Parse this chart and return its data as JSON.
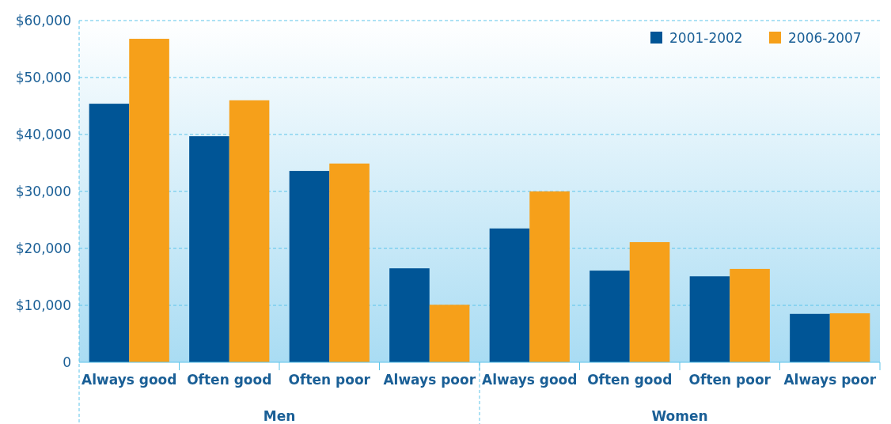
{
  "chart_data": {
    "type": "bar",
    "categories": [
      "Always good",
      "Often good",
      "Often poor",
      "Always poor",
      "Always good",
      "Often good",
      "Often poor",
      "Always poor"
    ],
    "series": [
      {
        "name": "2001-2002",
        "color": "#005596",
        "values": [
          45400,
          39700,
          33600,
          16500,
          23500,
          16100,
          15100,
          8500
        ]
      },
      {
        "name": "2006-2007",
        "color": "#f6a01a",
        "values": [
          56800,
          46000,
          34900,
          10100,
          30000,
          21100,
          16400,
          8600
        ]
      }
    ],
    "annotations": [
      "Men",
      "Women"
    ],
    "ylim": [
      0,
      60000
    ],
    "yticks": [
      {
        "value": 0,
        "label": "0"
      },
      {
        "value": 10000,
        "label": "$10,000"
      },
      {
        "value": 20000,
        "label": "$20,000"
      },
      {
        "value": 30000,
        "label": "$30,000"
      },
      {
        "value": 40000,
        "label": "$40,000"
      },
      {
        "value": 50000,
        "label": "$50,000"
      },
      {
        "value": 60000,
        "label": "$60,000"
      }
    ],
    "grid": "y",
    "legend": "top right"
  }
}
